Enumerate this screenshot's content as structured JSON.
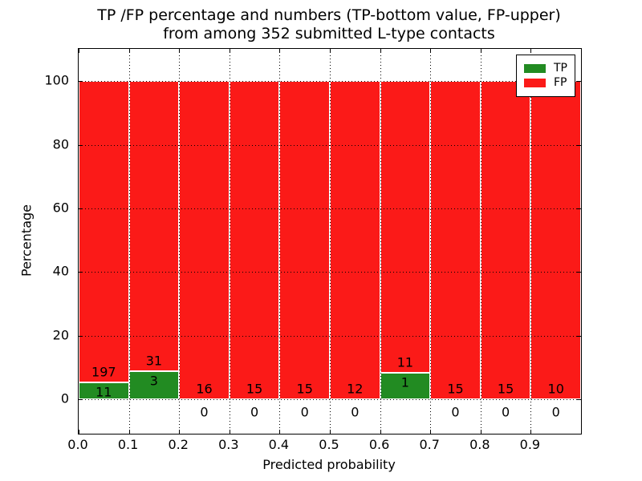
{
  "title": {
    "line1": "TP /FP percentage and numbers (TP-bottom value, FP-upper)",
    "line2": "from among 352 submitted L-type contacts"
  },
  "colors": {
    "tp_green": "#228b22",
    "fp_red": "#fb1a18",
    "axis_black": "#000000",
    "background": "#ffffff",
    "bar_edge": "#ffffff"
  },
  "legend": {
    "position": "upper right",
    "items": [
      {
        "label": "TP",
        "color": "#228b22"
      },
      {
        "label": "FP",
        "color": "#fb1a18"
      }
    ]
  },
  "chart_data": {
    "type": "bar",
    "stacked": true,
    "normalized_to_percent": 100,
    "title": "TP /FP percentage and numbers (TP-bottom value, FP-upper) from among 352 submitted L-type contacts",
    "xlabel": "Predicted probability",
    "ylabel": "Percentage",
    "categories": [
      "0.0-0.1",
      "0.1-0.2",
      "0.2-0.3",
      "0.3-0.4",
      "0.4-0.5",
      "0.5-0.6",
      "0.6-0.7",
      "0.7-0.8",
      "0.8-0.9",
      "0.9-1.0"
    ],
    "series": [
      {
        "name": "TP",
        "color": "#228b22",
        "counts": [
          11,
          3,
          0,
          0,
          0,
          0,
          1,
          0,
          0,
          0
        ]
      },
      {
        "name": "FP",
        "color": "#fb1a18",
        "counts": [
          197,
          31,
          16,
          15,
          15,
          12,
          11,
          15,
          15,
          10
        ]
      }
    ],
    "tp_percent_of_bar": [
      5.3,
      8.8,
      0,
      0,
      0,
      0,
      8.3,
      0,
      0,
      0
    ],
    "total_contacts": 352,
    "xlim": [
      0,
      1
    ],
    "ylim": [
      -10.8,
      110.2
    ],
    "x_ticks": [
      0,
      0.1,
      0.2,
      0.3,
      0.4,
      0.5,
      0.6,
      0.7,
      0.8,
      0.9
    ],
    "x_tick_labels": [
      "0.0",
      "0.1",
      "0.2",
      "0.3",
      "0.4",
      "0.5",
      "0.6",
      "0.7",
      "0.8",
      "0.9"
    ],
    "y_ticks": [
      0,
      20,
      40,
      60,
      80,
      100
    ],
    "y_tick_labels": [
      "0",
      "20",
      "40",
      "60",
      "80",
      "100"
    ],
    "grid": "dotted, drawn over bars",
    "legend_position": "upper right"
  }
}
